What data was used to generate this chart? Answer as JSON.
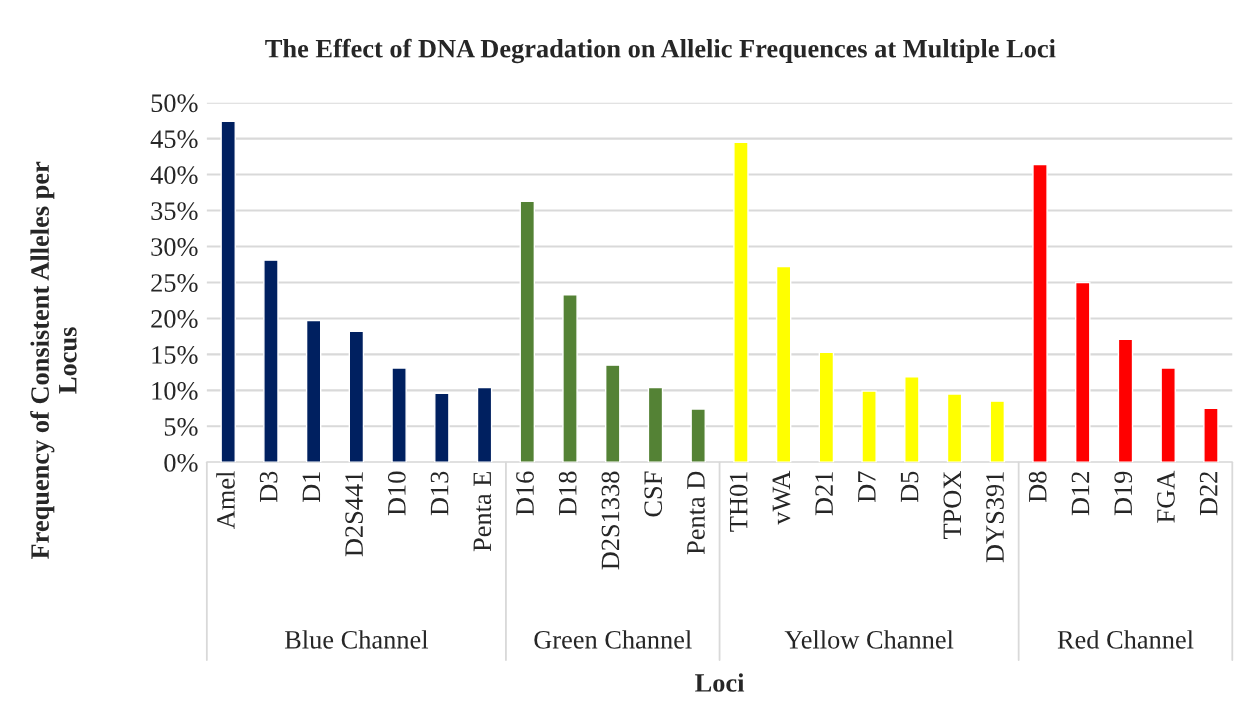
{
  "chart_data": {
    "type": "bar",
    "title": "The Effect of DNA Degradation on Allelic Frequences at Multiple Loci",
    "xlabel": "Loci",
    "ylabel": "Frequency of Consistent Alleles per Locus",
    "categories": [
      "Amel",
      "D3",
      "D1",
      "D2S441",
      "D10",
      "D13",
      "Penta E",
      "D16",
      "D18",
      "D2S1338",
      "CSF",
      "Penta D",
      "TH01",
      "vWA",
      "D21",
      "D7",
      "D5",
      "TPOX",
      "DYS391",
      "D8",
      "D12",
      "D19",
      "FGA",
      "D22"
    ],
    "values": [
      47.4,
      28.1,
      19.7,
      18.2,
      13.1,
      9.6,
      10.4,
      36.3,
      23.3,
      13.5,
      10.4,
      7.4,
      44.5,
      27.2,
      15.3,
      9.9,
      11.9,
      9.5,
      8.5,
      41.4,
      25.0,
      17.1,
      13.1,
      7.5
    ],
    "colors": [
      "#002060",
      "#002060",
      "#002060",
      "#002060",
      "#002060",
      "#002060",
      "#002060",
      "#548235",
      "#548235",
      "#548235",
      "#548235",
      "#548235",
      "#ffff00",
      "#ffff00",
      "#ffff00",
      "#ffff00",
      "#ffff00",
      "#ffff00",
      "#ffff00",
      "#ff0000",
      "#ff0000",
      "#ff0000",
      "#ff0000",
      "#ff0000"
    ],
    "annotations": [
      "Blue Channel",
      "Green Channel",
      "Yellow Channel",
      "Red Channel"
    ],
    "ylim": [
      0,
      50
    ],
    "yticks": [
      {
        "value": 0,
        "label": "0%"
      },
      {
        "value": 5,
        "label": "5%"
      },
      {
        "value": 10,
        "label": "10%"
      },
      {
        "value": 15,
        "label": "15%"
      },
      {
        "value": 20,
        "label": "20%"
      },
      {
        "value": 25,
        "label": "25%"
      },
      {
        "value": 30,
        "label": "30%"
      },
      {
        "value": 35,
        "label": "35%"
      },
      {
        "value": 40,
        "label": "40%"
      },
      {
        "value": 45,
        "label": "45%"
      },
      {
        "value": 50,
        "label": "50%"
      }
    ],
    "grid": "y",
    "legend": false
  }
}
